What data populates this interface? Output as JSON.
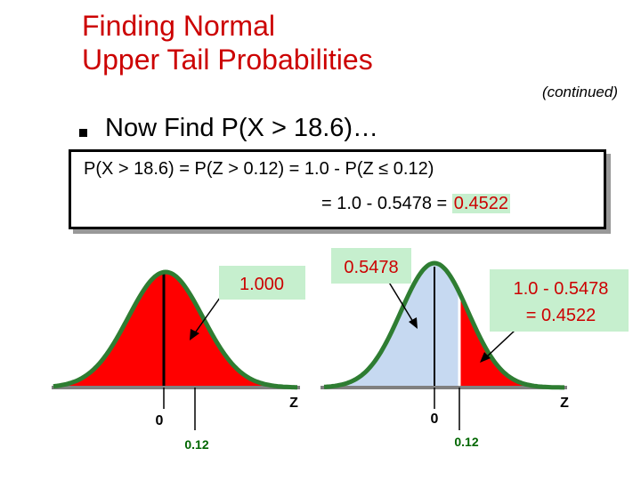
{
  "title": {
    "line1": "Finding Normal",
    "line2": "Upper Tail Probabilities"
  },
  "continued": "(continued)",
  "bullet": "Now Find P(X > 18.6)…",
  "calc": {
    "line1": "P(X > 18.6) = P(Z > 0.12) = 1.0 - P(Z ≤ 0.12)",
    "line2_prefix": "= 1.0 - 0.5478 = ",
    "line2_result": "0.4522"
  },
  "left_chart": {
    "callout": "1.000",
    "axis_label": "Z",
    "zero_label": "0",
    "z_label": "0.12"
  },
  "right_chart": {
    "callout": "0.5478",
    "callout2_line1": "1.0 - 0.5478",
    "callout2_line2": "= 0.4522",
    "axis_label": "Z",
    "zero_label": "0",
    "z_label": "0.12"
  },
  "colors": {
    "title": "#cc0000",
    "callout_fill": "#c6efce",
    "red_area": "#ff0000",
    "blue_area": "#c6d9f1",
    "curve": "#2e7d32",
    "tick_label": "#006600"
  }
}
